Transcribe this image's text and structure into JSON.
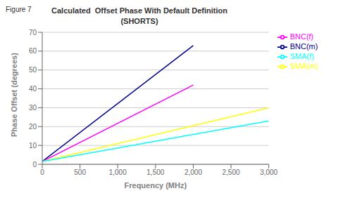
{
  "chart_data": {
    "type": "line",
    "title": "Calculated  Offset Phase With Default Definition",
    "subtitle": "(SHORTS)",
    "annotations": [
      "Figure 7"
    ],
    "x_label": "Frequency (MHz)",
    "y_label": "Phase Offset (degrees)",
    "xlim": [
      0,
      3000
    ],
    "ylim": [
      0,
      70
    ],
    "xticks": [
      0,
      500,
      {
        "value": 1000,
        "label": "1,000"
      },
      {
        "value": 1500,
        "label": "1,500"
      },
      {
        "value": 2000,
        "label": "2,000"
      },
      {
        "value": 2500,
        "label": "2,500"
      },
      {
        "value": 3000,
        "label": "3,000"
      }
    ],
    "yticks": [
      0,
      10,
      20,
      30,
      40,
      50,
      60,
      70
    ],
    "grid": "y",
    "legend": "right",
    "series": [
      {
        "name": "BNC(m)",
        "color": "#00008B",
        "x": [
          0,
          2000
        ],
        "values": [
          1.5,
          63.0
        ]
      },
      {
        "name": "BNC(f)",
        "color": "#FF00FF",
        "x": [
          0,
          2000
        ],
        "values": [
          1.5,
          42.0
        ]
      },
      {
        "name": "SMA(m)",
        "color": "#FFFF00",
        "x": [
          0,
          3000
        ],
        "values": [
          1.5,
          30.0
        ]
      },
      {
        "name": "SMA(f)",
        "color": "#00FFFF",
        "x": [
          0,
          3000
        ],
        "values": [
          1.5,
          23.0
        ]
      }
    ]
  }
}
